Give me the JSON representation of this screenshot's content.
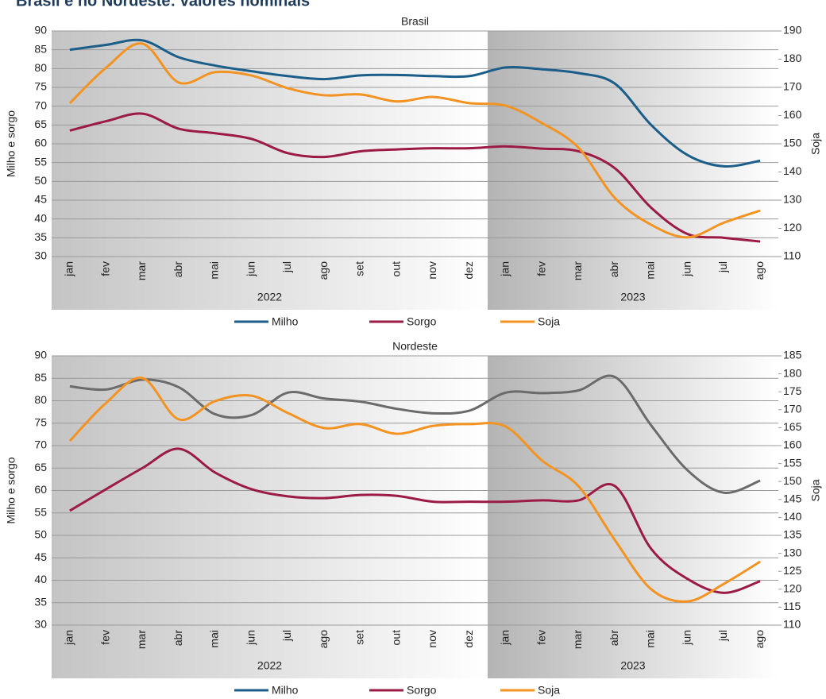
{
  "title": "Brasil e no Nordeste: valores nominais",
  "chart_data": [
    {
      "type": "line",
      "title": "Brasil",
      "categories": [
        "jan",
        "fev",
        "mar",
        "abr",
        "mai",
        "jun",
        "jul",
        "ago",
        "set",
        "out",
        "nov",
        "dez",
        "jan",
        "fev",
        "mar",
        "abr",
        "mai",
        "jun",
        "jul",
        "ago"
      ],
      "groups": [
        "2022",
        "2023"
      ],
      "ylabel": "Milho e sorgo",
      "y2label": "Soja",
      "ylim": [
        30,
        90
      ],
      "yticks": [
        30,
        35,
        40,
        45,
        50,
        55,
        60,
        65,
        70,
        75,
        80,
        85,
        90
      ],
      "y2lim": [
        110,
        190
      ],
      "y2ticks": [
        110,
        120,
        130,
        140,
        150,
        160,
        170,
        180,
        190
      ],
      "grid": true,
      "series": [
        {
          "name": "Milho",
          "color": "#1b5e89",
          "values": [
            85,
            86.3,
            87.5,
            83,
            80.8,
            79.3,
            78,
            77.2,
            78.2,
            78.3,
            78,
            78,
            80.3,
            79.8,
            78.8,
            76,
            65,
            57,
            54,
            55.5
          ]
        },
        {
          "name": "Sorgo",
          "color": "#9b1b45",
          "values": [
            63.5,
            66,
            68,
            64,
            62.8,
            61.3,
            57.5,
            56.5,
            58,
            58.5,
            58.8,
            58.8,
            59.3,
            58.7,
            58,
            53.5,
            43,
            36,
            35,
            34
          ]
        },
        {
          "name": "Soja",
          "color": "#f39322",
          "axis": "y2",
          "values": [
            164.4,
            177,
            185.5,
            171.7,
            175.4,
            174.2,
            169.7,
            167.2,
            167.5,
            165,
            166.6,
            164.4,
            163.5,
            157.3,
            148.6,
            130.8,
            121.3,
            116.8,
            122,
            126.3
          ]
        }
      ]
    },
    {
      "type": "line",
      "title": "Nordeste",
      "categories": [
        "jan",
        "fev",
        "mar",
        "abr",
        "mai",
        "jun",
        "jul",
        "ago",
        "set",
        "out",
        "nov",
        "dez",
        "jan",
        "fev",
        "mar",
        "abr",
        "mai",
        "jun",
        "jul",
        "ago"
      ],
      "groups": [
        "2022",
        "2023"
      ],
      "ylabel": "Milho e sorgo",
      "y2label": "Soja",
      "ylim": [
        30,
        90
      ],
      "yticks": [
        30,
        35,
        40,
        45,
        50,
        55,
        60,
        65,
        70,
        75,
        80,
        85,
        90
      ],
      "y2lim": [
        110,
        185
      ],
      "y2ticks": [
        110,
        115,
        120,
        125,
        130,
        135,
        140,
        145,
        150,
        155,
        160,
        165,
        170,
        175,
        180,
        185
      ],
      "grid": true,
      "series": [
        {
          "name": "Milho",
          "color": "#1b5e89",
          "line_color": "#6b6b6b",
          "values": [
            83.2,
            82.5,
            84.7,
            83,
            77,
            76.8,
            81.8,
            80.5,
            79.8,
            78.2,
            77.2,
            77.8,
            81.8,
            81.7,
            82.3,
            85.3,
            74.5,
            64.5,
            59.5,
            62.2
          ]
        },
        {
          "name": "Sorgo",
          "color": "#9b1b45",
          "values": [
            55.5,
            60.3,
            65,
            69.3,
            64,
            60.3,
            58.7,
            58.3,
            59,
            58.8,
            57.5,
            57.5,
            57.5,
            57.8,
            57.8,
            61,
            47,
            40.3,
            37.2,
            39.8
          ]
        },
        {
          "name": "Soja",
          "color": "#f39322",
          "axis": "y2",
          "values": [
            161.3,
            171.9,
            178.8,
            167.3,
            172.4,
            173.9,
            169.1,
            164.9,
            166,
            163.3,
            165.5,
            166,
            165.3,
            155.8,
            148.7,
            133.7,
            120,
            116.6,
            121.5,
            127.7
          ]
        }
      ]
    }
  ]
}
